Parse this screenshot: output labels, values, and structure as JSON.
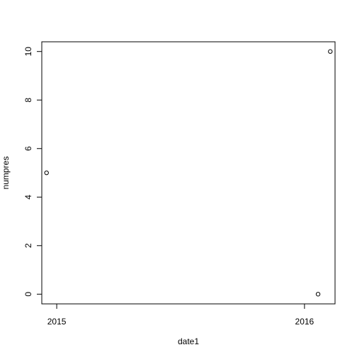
{
  "chart_data": {
    "type": "scatter",
    "title": "",
    "xlabel": "date1",
    "ylabel": "numpres",
    "x_axis_type": "date",
    "xlim": [
      "2014-12-10",
      "2016-02-15"
    ],
    "ylim": [
      -0.4,
      10.4
    ],
    "x_ticks": [
      {
        "value": "2015-01-01",
        "label": "2015"
      },
      {
        "value": "2016-01-01",
        "label": "2016"
      }
    ],
    "y_ticks": [
      {
        "value": 0,
        "label": "0"
      },
      {
        "value": 2,
        "label": "2"
      },
      {
        "value": 4,
        "label": "4"
      },
      {
        "value": 6,
        "label": "6"
      },
      {
        "value": 8,
        "label": "8"
      },
      {
        "value": 10,
        "label": "10"
      }
    ],
    "points": [
      {
        "x": "2014-12-17",
        "y": 5
      },
      {
        "x": "2016-01-21",
        "y": 0
      },
      {
        "x": "2016-02-08",
        "y": 10
      }
    ],
    "grid": false,
    "legend": "none",
    "marker": "open-circle",
    "colors": {
      "background": "#ffffff",
      "axis": "#000000",
      "marker": "#000000"
    }
  }
}
